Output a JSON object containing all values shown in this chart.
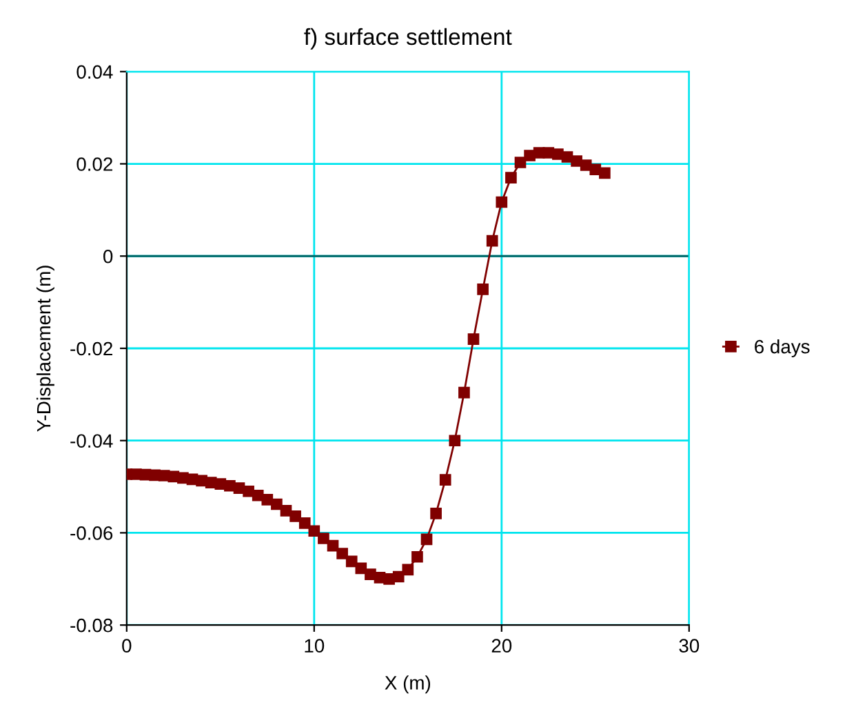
{
  "chart_data": {
    "type": "line",
    "title": "f) surface settlement",
    "xlabel": "X (m)",
    "ylabel": "Y-Displacement (m)",
    "x": [
      0,
      0.5,
      1,
      1.5,
      2,
      2.5,
      3,
      3.5,
      4,
      4.5,
      5,
      5.5,
      6,
      6.5,
      7,
      7.5,
      8,
      8.5,
      9,
      9.5,
      10,
      10.5,
      11,
      11.5,
      12,
      12.5,
      13,
      13.5,
      14,
      14.5,
      15,
      15.5,
      16,
      16.5,
      17,
      17.5,
      18,
      18.5,
      19,
      19.5,
      20,
      20.5,
      21,
      21.5,
      22,
      22.5,
      23,
      23.5,
      24,
      24.5,
      25,
      25.5
    ],
    "series": [
      {
        "name": "6 days",
        "color": "#800000",
        "values": [
          -0.0473,
          -0.0473,
          -0.0474,
          -0.0475,
          -0.0476,
          -0.0478,
          -0.0481,
          -0.0484,
          -0.0487,
          -0.0491,
          -0.0494,
          -0.0498,
          -0.0503,
          -0.051,
          -0.0519,
          -0.0528,
          -0.0538,
          -0.0552,
          -0.0564,
          -0.0579,
          -0.0596,
          -0.0612,
          -0.0628,
          -0.0645,
          -0.0662,
          -0.0677,
          -0.069,
          -0.0697,
          -0.07,
          -0.0695,
          -0.068,
          -0.0652,
          -0.0614,
          -0.0558,
          -0.0485,
          -0.04,
          -0.0296,
          -0.018,
          -0.0072,
          0.0033,
          0.0117,
          0.017,
          0.0203,
          0.0218,
          0.0224,
          0.0224,
          0.0221,
          0.0215,
          0.0206,
          0.0197,
          0.0188,
          0.018
        ]
      }
    ],
    "xlim": [
      0,
      30
    ],
    "xticks": [
      0,
      10,
      20,
      30
    ],
    "ylim": [
      -0.08,
      0.04
    ],
    "yticks": [
      -0.08,
      -0.06,
      -0.04,
      -0.02,
      0,
      0.02,
      0.04
    ],
    "ref_lines": [
      {
        "axis": "y",
        "value": 0,
        "color": "#006666"
      }
    ],
    "grid": true,
    "legend": "right",
    "marker": "square",
    "line_style": "solid"
  }
}
